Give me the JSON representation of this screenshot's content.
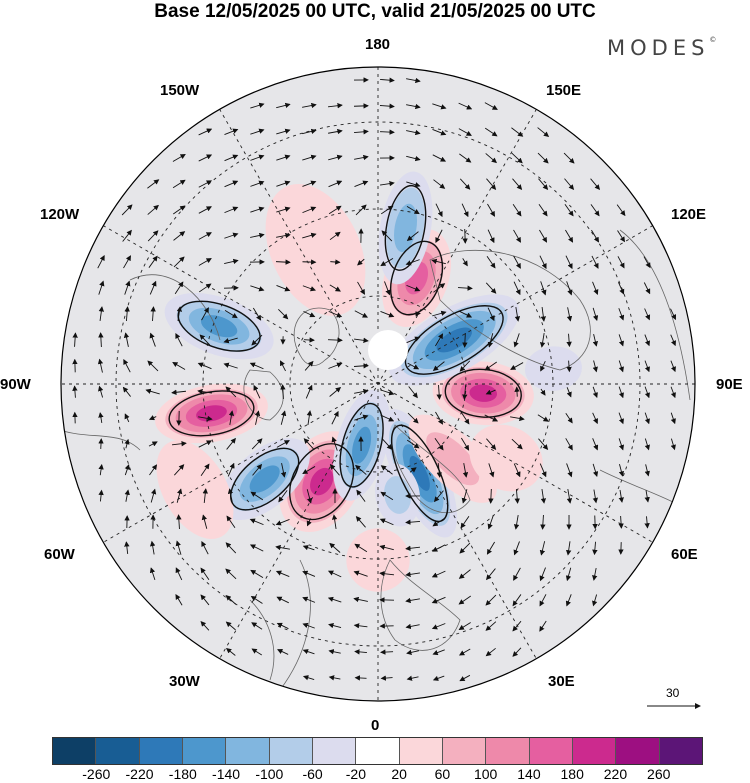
{
  "title": "Base 12/05/2025 00 UTC, valid 21/05/2025 00 UTC",
  "brand": {
    "name": "MODES",
    "mark": "©"
  },
  "longitude_labels": {
    "top": "180",
    "bottom": "0",
    "left": "90W",
    "right": "90E",
    "upper_left_outer": "150W",
    "upper_left_inner": "120W",
    "upper_right_outer": "150E",
    "upper_right_inner": "120E",
    "lower_left_inner": "60W",
    "lower_left_outer": "30W",
    "lower_right_inner": "60E",
    "lower_right_outer": "30E"
  },
  "vector_scale": {
    "label": "30"
  },
  "colorbar": {
    "colors": [
      "#0d3f66",
      "#185d94",
      "#2e79b8",
      "#4d97cd",
      "#81b6df",
      "#b3cde9",
      "#dcdcee",
      "#ffffff",
      "#fbd7da",
      "#f4b0bf",
      "#ee89aa",
      "#e55fa0",
      "#cc2a8e",
      "#9d0f81",
      "#5c1577"
    ],
    "ticks": [
      "-260",
      "-220",
      "-180",
      "-140",
      "-100",
      "-60",
      "-20",
      "20",
      "60",
      "100",
      "140",
      "180",
      "220",
      "260"
    ]
  },
  "anomalies": [
    {
      "lon": -30,
      "lat": 58,
      "value": 200,
      "rx": 0.12,
      "ry": 0.17
    },
    {
      "lon": -80,
      "lat": 42,
      "value": 230,
      "rx": 0.09,
      "ry": 0.18
    },
    {
      "lon": -50,
      "lat": 48,
      "value": -160,
      "rx": 0.09,
      "ry": 0.17
    },
    {
      "lon": -110,
      "lat": 42,
      "value": -180,
      "rx": 0.09,
      "ry": 0.18
    },
    {
      "lon": -15,
      "lat": 72,
      "value": -180,
      "rx": 0.08,
      "ry": 0.18
    },
    {
      "lon": 25,
      "lat": 62,
      "value": -220,
      "rx": 0.08,
      "ry": 0.22
    },
    {
      "lon": 85,
      "lat": 60,
      "value": 200,
      "rx": 0.1,
      "ry": 0.16
    },
    {
      "lon": 120,
      "lat": 65,
      "value": -200,
      "rx": 0.1,
      "ry": 0.23
    },
    {
      "lon": 160,
      "lat": 58,
      "value": 190,
      "rx": 0.1,
      "ry": 0.16
    },
    {
      "lon": 170,
      "lat": 45,
      "value": -150,
      "rx": 0.08,
      "ry": 0.18
    },
    {
      "lon": -155,
      "lat": 48,
      "value": 60,
      "rx": 0.14,
      "ry": 0.22
    },
    {
      "lon": 45,
      "lat": 60,
      "value": 80,
      "rx": 0.08,
      "ry": 0.18
    },
    {
      "lon": 95,
      "lat": 40,
      "value": -60,
      "rx": 0.07,
      "ry": 0.09
    },
    {
      "lon": -60,
      "lat": 30,
      "value": 50,
      "rx": 0.17,
      "ry": 0.1
    },
    {
      "lon": 60,
      "lat": 48,
      "value": 60,
      "rx": 0.1,
      "ry": 0.12
    },
    {
      "lon": 0,
      "lat": 40,
      "value": 50,
      "rx": 0.1,
      "ry": 0.1
    },
    {
      "lon": 10,
      "lat": 58,
      "value": -80,
      "rx": 0.07,
      "ry": 0.1
    }
  ]
}
